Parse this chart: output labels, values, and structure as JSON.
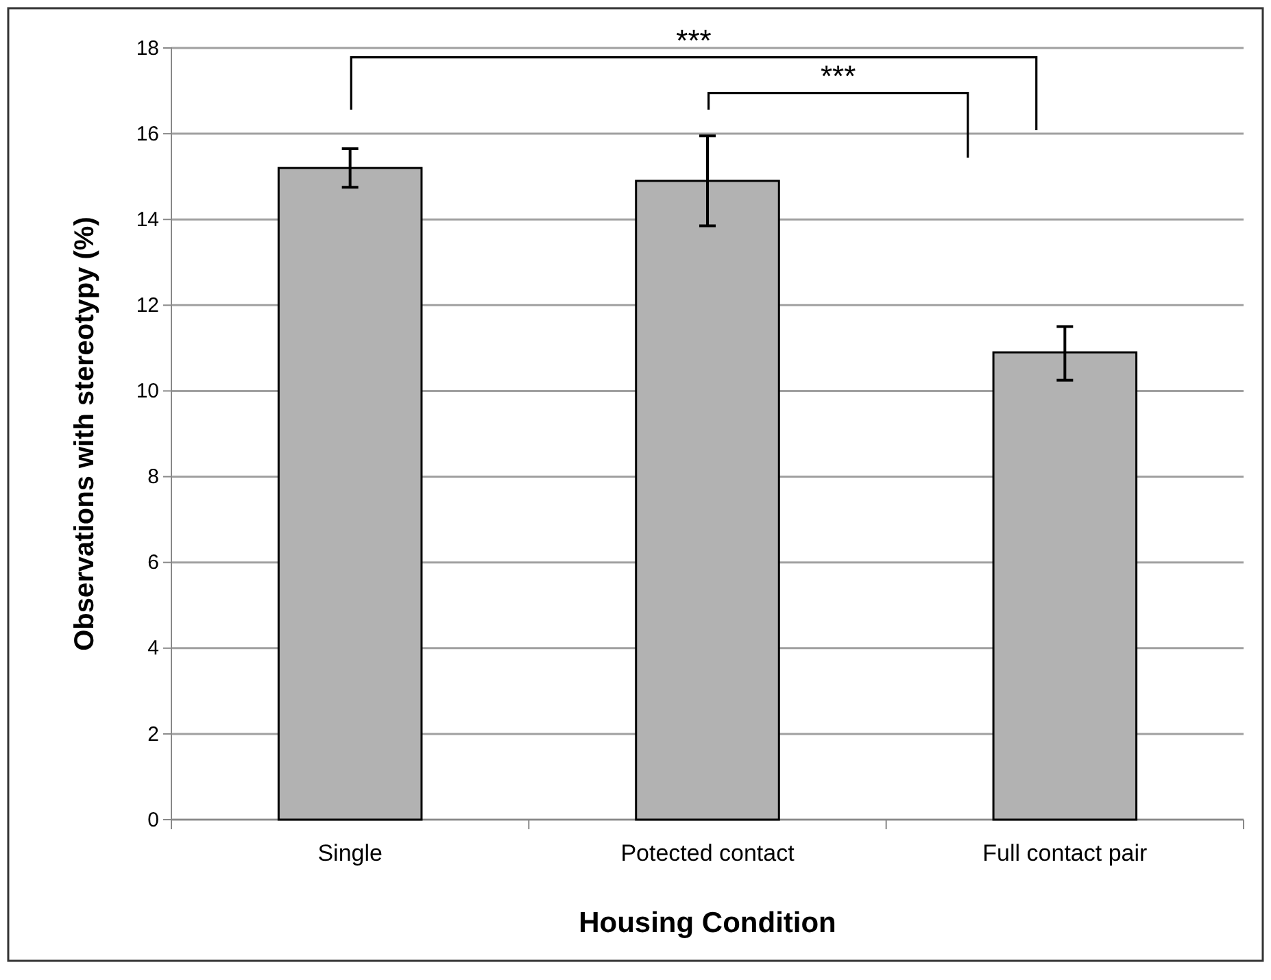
{
  "chart_data": {
    "type": "bar",
    "xlabel": "Housing Condition",
    "ylabel": "Observations with stereotypy (%)",
    "categories": [
      "Single",
      "Potected contact",
      "Full contact pair"
    ],
    "values": [
      15.2,
      14.9,
      10.9
    ],
    "errors": [
      [
        14.75,
        15.65
      ],
      [
        13.85,
        15.95
      ],
      [
        10.25,
        11.5
      ]
    ],
    "color": "#b2b2b2",
    "ylim": [
      0,
      18
    ],
    "yticks": [
      0,
      2,
      4,
      6,
      8,
      10,
      12,
      14,
      16,
      18
    ],
    "grid": "y",
    "annotations": [
      "***",
      "***"
    ]
  }
}
